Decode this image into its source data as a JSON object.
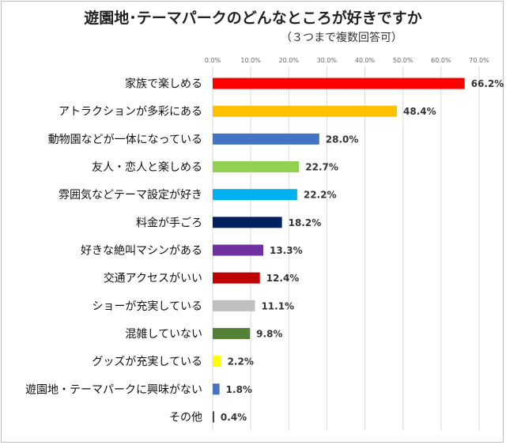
{
  "chart_data": {
    "type": "bar",
    "orientation": "horizontal",
    "title": "遊園地･テーマパークのどんなところが好きですか",
    "subtitle": "（３つまで複数回答可）",
    "x_ticks": [
      "0.0%",
      "10.0%",
      "20.0%",
      "30.0%",
      "40.0%",
      "50.0%",
      "60.0%",
      "70.0%"
    ],
    "xlim": [
      0,
      70
    ],
    "grid": true,
    "legend": "none",
    "categories": [
      "家族で楽しめる",
      "アトラクションが多彩にある",
      "動物園などが一体になっている",
      "友人・恋人と楽しめる",
      "雰囲気などテーマ設定が好き",
      "料金が手ごろ",
      "好きな絶叫マシンがある",
      "交通アクセスがいい",
      "ショーが充実している",
      "混雑していない",
      "グッズが充実している",
      "遊園地・テーマパークに興味がない",
      "その他"
    ],
    "values": [
      66.2,
      48.4,
      28.0,
      22.7,
      22.2,
      18.2,
      13.3,
      12.4,
      11.1,
      9.8,
      2.2,
      1.8,
      0.4
    ],
    "value_labels": [
      "66.2%",
      "48.4%",
      "28.0%",
      "22.7%",
      "22.2%",
      "18.2%",
      "13.3%",
      "12.4%",
      "11.1%",
      "9.8%",
      "2.2%",
      "1.8%",
      "0.4%"
    ],
    "colors": [
      "#ff0000",
      "#ffc000",
      "#4472c4",
      "#92d050",
      "#00b0f0",
      "#002060",
      "#7030a0",
      "#c00000",
      "#bfbfbf",
      "#538135",
      "#ffff00",
      "#4472c4",
      "#404040"
    ]
  }
}
